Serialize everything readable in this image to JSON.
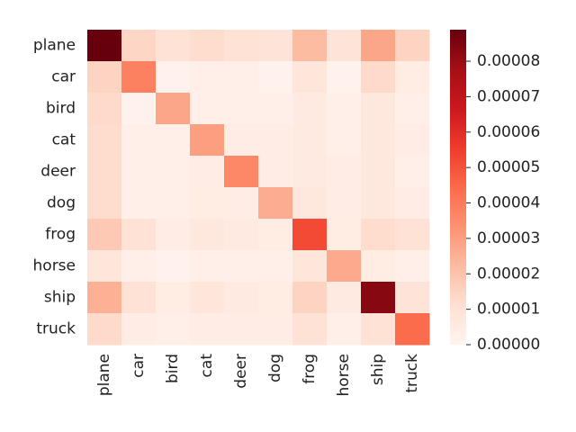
{
  "chart_data": {
    "type": "heatmap",
    "x_categories": [
      "plane",
      "car",
      "bird",
      "cat",
      "deer",
      "dog",
      "frog",
      "horse",
      "ship",
      "truck"
    ],
    "y_categories": [
      "plane",
      "car",
      "bird",
      "cat",
      "deer",
      "dog",
      "frog",
      "horse",
      "ship",
      "truck"
    ],
    "values": [
      [
        8.9e-05,
        1.4e-05,
        1e-05,
        1.2e-05,
        1e-05,
        9e-06,
        2.2e-05,
        9e-06,
        2.8e-05,
        1.5e-05
      ],
      [
        1.5e-05,
        3.8e-05,
        2e-06,
        3e-06,
        3e-06,
        2e-06,
        8e-06,
        2e-06,
        1.3e-05,
        5e-06
      ],
      [
        1.3e-05,
        2e-06,
        2.8e-05,
        3e-06,
        3e-06,
        3e-06,
        6e-06,
        3e-06,
        7e-06,
        3e-06
      ],
      [
        1.2e-05,
        3e-06,
        3e-06,
        3e-05,
        4e-06,
        4e-06,
        6e-06,
        3e-06,
        7e-06,
        4e-06
      ],
      [
        1.2e-05,
        3e-06,
        3e-06,
        4e-06,
        3.6e-05,
        4e-06,
        6e-06,
        4e-06,
        7e-06,
        3e-06
      ],
      [
        1.2e-05,
        3e-06,
        3e-06,
        5e-06,
        4e-06,
        2.6e-05,
        7e-06,
        4e-06,
        7e-06,
        4e-06
      ],
      [
        1.8e-05,
        1e-05,
        4e-06,
        7e-06,
        6e-06,
        5e-06,
        5.2e-05,
        5e-06,
        1.2e-05,
        1e-05
      ],
      [
        8e-06,
        3e-06,
        2e-06,
        3e-06,
        3e-06,
        3e-06,
        8e-06,
        2.7e-05,
        5e-06,
        3e-06
      ],
      [
        2.5e-05,
        1e-05,
        5e-06,
        8e-06,
        6e-06,
        5e-06,
        1.5e-05,
        6e-06,
        8.3e-05,
        9e-06
      ],
      [
        1.3e-05,
        4e-06,
        3e-06,
        4e-06,
        4e-06,
        4e-06,
        1e-05,
        3e-06,
        1e-05,
        4.4e-05
      ]
    ],
    "clim": [
      0,
      8.89e-05
    ],
    "cticks": [
      {
        "value": 0,
        "label": "0.00000"
      },
      1e-05,
      2e-05,
      3e-05,
      4e-05,
      5e-05,
      6e-05,
      7e-05,
      8e-05
    ],
    "colormap": [
      "#fff5f0",
      "#fee0d2",
      "#fcbba1",
      "#fc9272",
      "#fb6a4a",
      "#ef3b2c",
      "#cb181d",
      "#a50f15",
      "#67000d"
    ]
  }
}
